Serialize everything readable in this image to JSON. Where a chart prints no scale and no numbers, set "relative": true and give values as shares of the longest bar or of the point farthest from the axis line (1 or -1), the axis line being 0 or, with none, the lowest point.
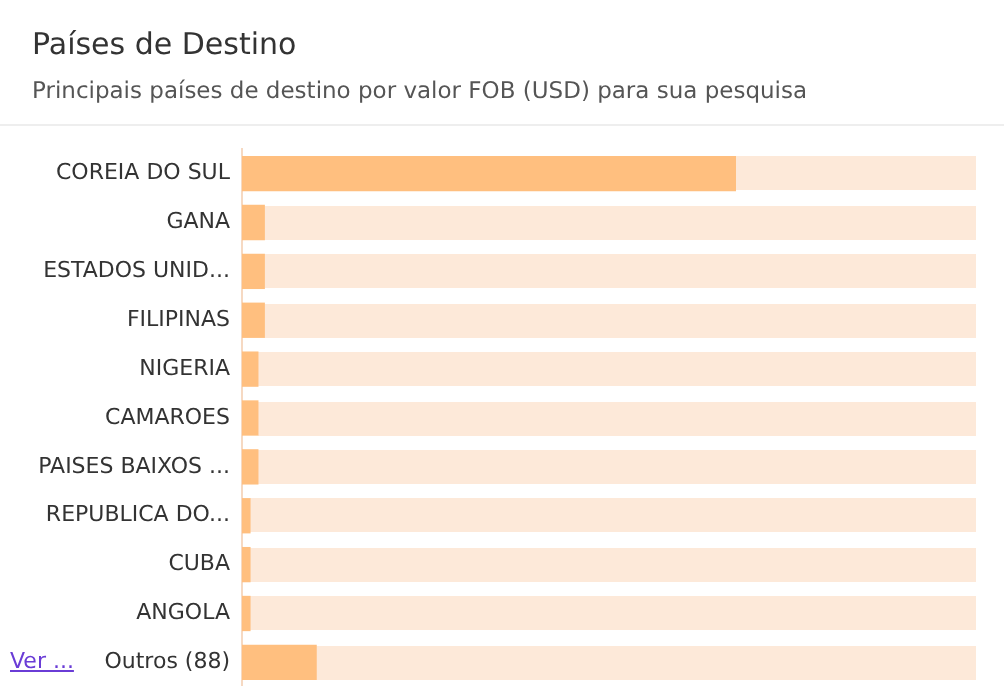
{
  "chart_data": {
    "type": "bar",
    "orientation": "horizontal",
    "relative": true,
    "title": "Países de Destino",
    "subtitle": "Principais países de destino por valor FOB (USD) para sua pesquisa",
    "categories": [
      "COREIA DO SUL",
      "GANA",
      "ESTADOS UNID...",
      "FILIPINAS",
      "NIGERIA",
      "CAMAROES",
      "PAISES BAIXOS ...",
      "REPUBLICA DO...",
      "CUBA",
      "ANGOLA",
      "Outros (88)"
    ],
    "values": [
      1,
      0.045,
      0.045,
      0.045,
      0.032,
      0.032,
      0.032,
      0.016,
      0.016,
      0.016,
      0.15
    ],
    "color": "#ffbf7f",
    "annotations": [
      "Ver ..."
    ]
  }
}
